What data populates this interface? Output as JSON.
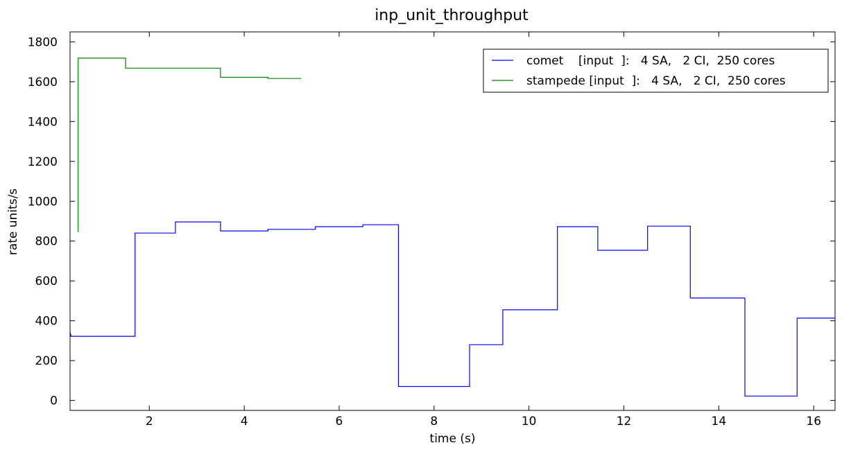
{
  "chart_data": {
    "type": "line",
    "step": true,
    "title": "inp_unit_throughput",
    "xlabel": "time (s)",
    "ylabel": "rate units/s",
    "xlim": [
      0.33,
      16.45
    ],
    "ylim": [
      -50,
      1850
    ],
    "xticks": [
      2,
      4,
      6,
      8,
      10,
      12,
      14,
      16
    ],
    "yticks": [
      0,
      200,
      400,
      600,
      800,
      1000,
      1200,
      1400,
      1600,
      1800
    ],
    "grid": false,
    "legend_position": "top-right",
    "series": [
      {
        "name": "comet    [input  ]:   4 SA,   2 CI,  250 cores",
        "color": "#0000ff",
        "points": [
          [
            0.33,
            345
          ],
          [
            0.35,
            322
          ],
          [
            1.7,
            322
          ],
          [
            1.7,
            840
          ],
          [
            2.55,
            840
          ],
          [
            2.55,
            896
          ],
          [
            3.5,
            896
          ],
          [
            3.5,
            851
          ],
          [
            4.5,
            851
          ],
          [
            4.5,
            859
          ],
          [
            5.5,
            859
          ],
          [
            5.5,
            872
          ],
          [
            6.5,
            872
          ],
          [
            6.5,
            882
          ],
          [
            7.25,
            882
          ],
          [
            7.25,
            70
          ],
          [
            8.75,
            70
          ],
          [
            8.75,
            280
          ],
          [
            9.45,
            280
          ],
          [
            9.45,
            455
          ],
          [
            10.6,
            455
          ],
          [
            10.6,
            872
          ],
          [
            11.45,
            872
          ],
          [
            11.45,
            754
          ],
          [
            12.5,
            754
          ],
          [
            12.5,
            875
          ],
          [
            13.4,
            875
          ],
          [
            13.4,
            514
          ],
          [
            14.55,
            514
          ],
          [
            14.55,
            22
          ],
          [
            15.65,
            22
          ],
          [
            15.65,
            413
          ],
          [
            16.45,
            413
          ]
        ]
      },
      {
        "name": "stampede [input  ]:   4 SA,   2 CI,  250 cores",
        "color": "#008000",
        "points": [
          [
            0.5,
            845
          ],
          [
            0.5,
            1718
          ],
          [
            1.5,
            1718
          ],
          [
            1.5,
            1668
          ],
          [
            3.5,
            1668
          ],
          [
            3.5,
            1622
          ],
          [
            4.5,
            1622
          ],
          [
            4.5,
            1616
          ],
          [
            5.2,
            1616
          ]
        ]
      }
    ]
  }
}
